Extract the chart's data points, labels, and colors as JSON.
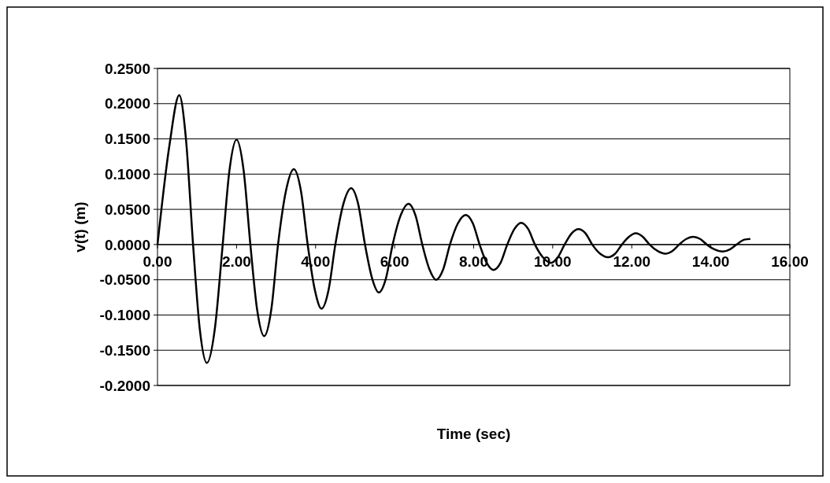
{
  "chart_data": {
    "type": "line",
    "xlabel": "Time (sec)",
    "ylabel": "v(t) (m)",
    "xlim": [
      0,
      16
    ],
    "xticks": [
      {
        "value": 0,
        "label": "0.00"
      },
      {
        "value": 2,
        "label": "2.00"
      },
      {
        "value": 4,
        "label": "4.00"
      },
      {
        "value": 6,
        "label": "6.00"
      },
      {
        "value": 8,
        "label": "8.00"
      },
      {
        "value": 10,
        "label": "10.00"
      },
      {
        "value": 12,
        "label": "12.00"
      },
      {
        "value": 14,
        "label": "14.00"
      },
      {
        "value": 16,
        "label": "16.00"
      }
    ],
    "ylim": [
      -0.2,
      0.25
    ],
    "yticks": [
      {
        "value": -0.2,
        "label": "-0.2000"
      },
      {
        "value": -0.15,
        "label": "-0.1500"
      },
      {
        "value": -0.1,
        "label": "-0.1000"
      },
      {
        "value": -0.05,
        "label": "-0.0500"
      },
      {
        "value": 0,
        "label": "0.0000"
      },
      {
        "value": 0.05,
        "label": "0.0500"
      },
      {
        "value": 0.1,
        "label": "0.1000"
      },
      {
        "value": 0.15,
        "label": "0.1500"
      },
      {
        "value": 0.2,
        "label": "0.2000"
      },
      {
        "value": 0.25,
        "label": "0.2500"
      }
    ],
    "grid": "y",
    "marker": "none",
    "line_style": "solid",
    "series": [
      {
        "color": "#000000",
        "x": [
          0,
          0.3,
          0.55,
          0.72,
          0.9,
          1.07,
          1.25,
          1.45,
          1.65,
          1.82,
          2.0,
          2.18,
          2.35,
          2.52,
          2.7,
          2.88,
          3.05,
          3.25,
          3.45,
          3.63,
          3.8,
          3.98,
          4.15,
          4.33,
          4.5,
          4.7,
          4.9,
          5.08,
          5.25,
          5.43,
          5.6,
          5.78,
          5.95,
          6.15,
          6.35,
          6.53,
          6.7,
          6.88,
          7.05,
          7.23,
          7.4,
          7.6,
          7.8,
          7.98,
          8.15,
          8.33,
          8.5,
          8.68,
          8.85,
          9.03,
          9.2,
          9.38,
          9.55,
          9.75,
          9.95,
          10.13,
          10.3,
          10.48,
          10.65,
          10.83,
          11.0,
          11.2,
          11.4,
          11.58,
          11.75,
          11.93,
          12.1,
          12.28,
          12.45,
          12.65,
          12.85,
          13.03,
          13.2,
          13.38,
          13.55,
          13.73,
          13.9,
          14.1,
          14.3,
          14.48,
          14.65,
          14.85,
          15.0
        ],
        "values": [
          0,
          0.14,
          0.212,
          0.15,
          0,
          -0.12,
          -0.168,
          -0.12,
          0,
          0.105,
          0.149,
          0.105,
          0,
          -0.092,
          -0.13,
          -0.092,
          0,
          0.076,
          0.107,
          0.076,
          0,
          -0.064,
          -0.091,
          -0.064,
          0,
          0.057,
          0.08,
          0.057,
          0,
          -0.048,
          -0.068,
          -0.048,
          0,
          0.041,
          0.058,
          0.041,
          0,
          -0.035,
          -0.05,
          -0.035,
          0,
          0.03,
          0.042,
          0.03,
          0,
          -0.026,
          -0.036,
          -0.026,
          0,
          0.022,
          0.031,
          0.022,
          0,
          -0.018,
          -0.026,
          -0.018,
          0,
          0.016,
          0.022,
          0.016,
          0,
          -0.013,
          -0.018,
          -0.013,
          0,
          0.011,
          0.016,
          0.011,
          0,
          -0.009,
          -0.013,
          -0.009,
          0,
          0.008,
          0.011,
          0.008,
          0,
          -0.007,
          -0.01,
          -0.007,
          0,
          0.007,
          0.008
        ]
      }
    ]
  }
}
